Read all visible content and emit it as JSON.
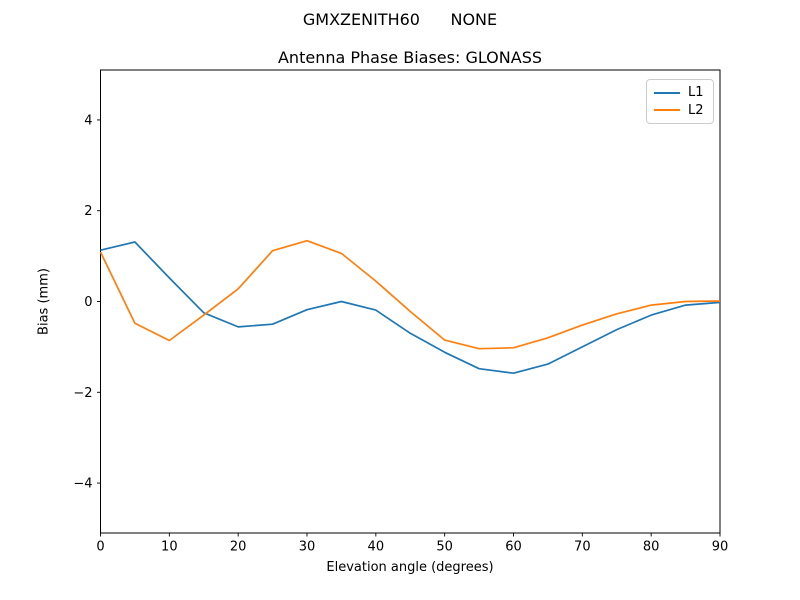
{
  "figure": {
    "suptitle": "GMXZENITH60      NONE",
    "axes_title": "Antenna Phase Biases: GLONASS"
  },
  "chart_data": {
    "type": "line",
    "suptitle": "GMXZENITH60      NONE",
    "title": "Antenna Phase Biases: GLONASS",
    "xlabel": "Elevation angle (degrees)",
    "ylabel": "Bias (mm)",
    "xlim": [
      0,
      90
    ],
    "ylim": [
      -5.1,
      5.1
    ],
    "xticks": [
      0,
      10,
      20,
      30,
      40,
      50,
      60,
      70,
      80,
      90
    ],
    "yticks": [
      -4,
      -2,
      0,
      2,
      4
    ],
    "grid": false,
    "legend": {
      "position": "upper right",
      "entries": [
        "L1",
        "L2"
      ]
    },
    "x": [
      0,
      5,
      10,
      15,
      20,
      25,
      30,
      35,
      40,
      45,
      50,
      55,
      60,
      65,
      70,
      75,
      80,
      85,
      90
    ],
    "series": [
      {
        "name": "L1",
        "color": "#1f77b4",
        "values": [
          1.13,
          1.31,
          0.52,
          -0.25,
          -0.56,
          -0.5,
          -0.18,
          0.0,
          -0.19,
          -0.7,
          -1.12,
          -1.48,
          -1.58,
          -1.38,
          -1.0,
          -0.62,
          -0.3,
          -0.08,
          -0.02
        ]
      },
      {
        "name": "L2",
        "color": "#ff7f0e",
        "values": [
          1.09,
          -0.48,
          -0.86,
          -0.3,
          0.28,
          1.12,
          1.34,
          1.06,
          0.45,
          -0.22,
          -0.85,
          -1.04,
          -1.02,
          -0.8,
          -0.52,
          -0.27,
          -0.08,
          0.0,
          0.01
        ]
      }
    ]
  }
}
